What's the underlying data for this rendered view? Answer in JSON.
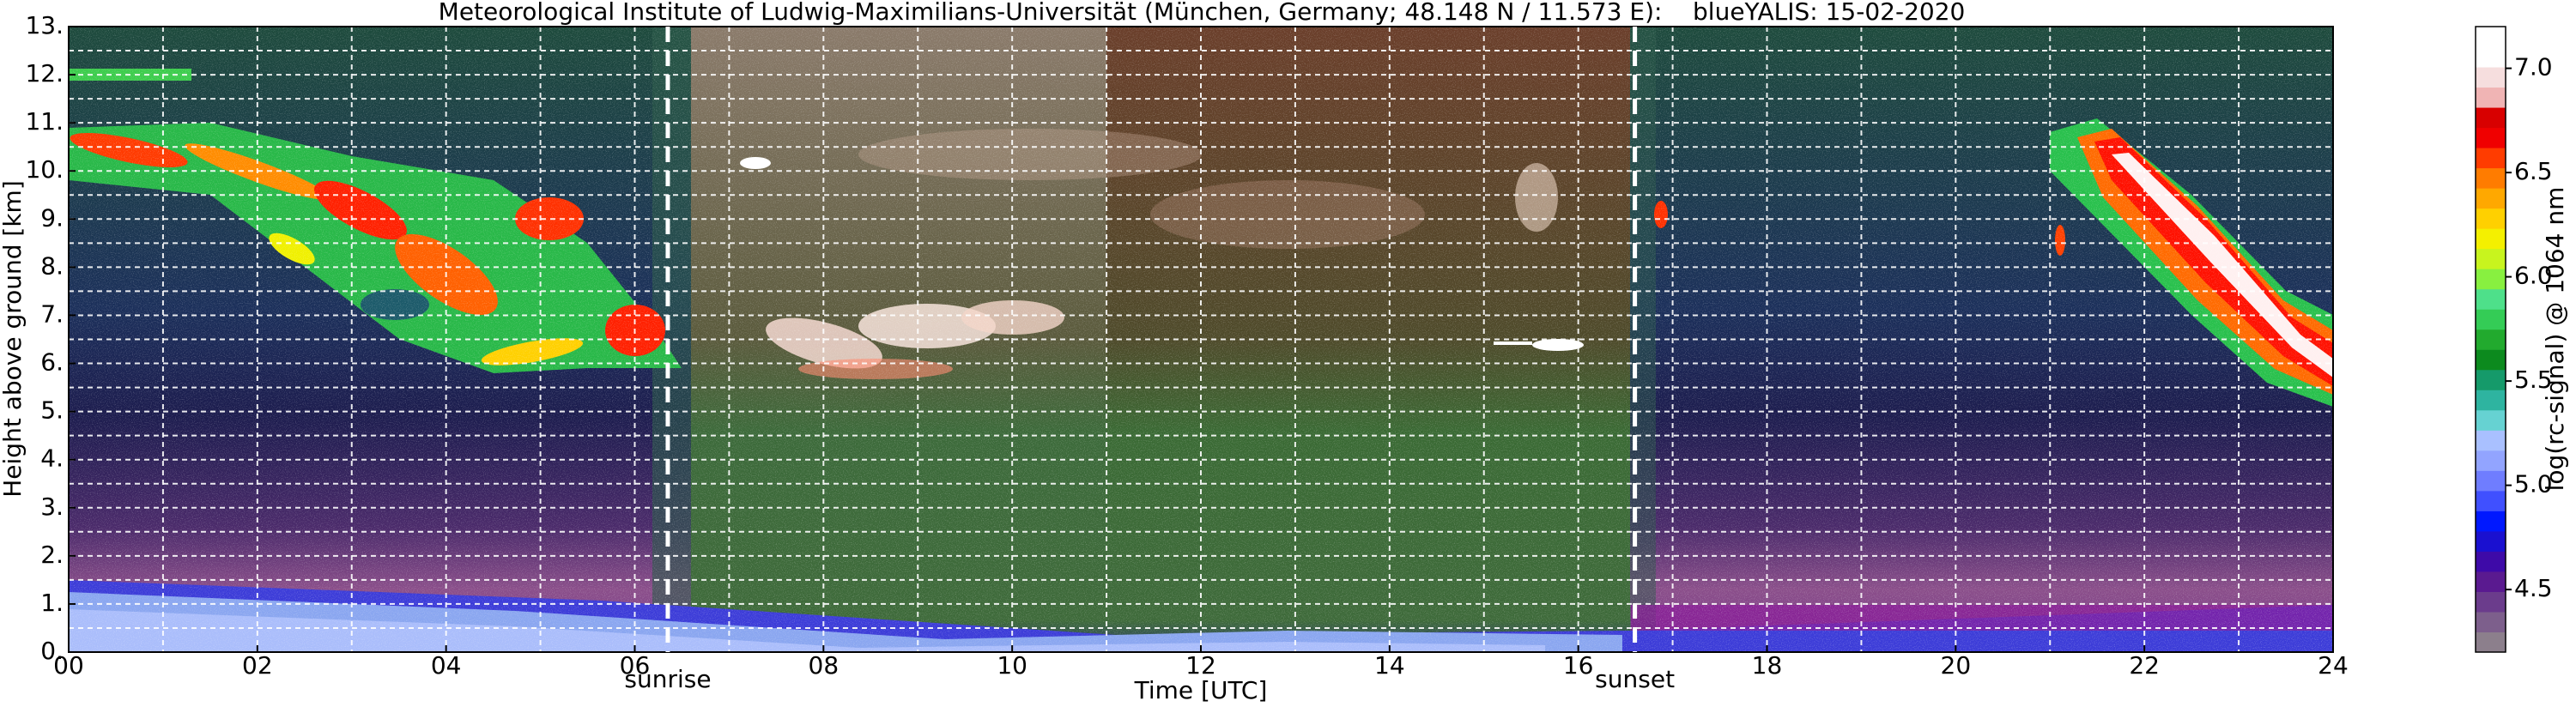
{
  "chart_data": {
    "type": "heatmap",
    "title": "Meteorological Institute of Ludwig-Maximilians-Universität (München, Germany; 48.148 N / 11.573 E):    blueYALIS: 15-02-2020",
    "xlabel": "Time [UTC]",
    "ylabel": "Height above ground [km]",
    "xlim": [
      0,
      24
    ],
    "xticks": [
      {
        "value": 0,
        "label": "00"
      },
      {
        "value": 2,
        "label": "02"
      },
      {
        "value": 4,
        "label": "04"
      },
      {
        "value": 6,
        "label": "06"
      },
      {
        "value": 8,
        "label": "08"
      },
      {
        "value": 10,
        "label": "10"
      },
      {
        "value": 12,
        "label": "12"
      },
      {
        "value": 14,
        "label": "14"
      },
      {
        "value": 16,
        "label": "16"
      },
      {
        "value": 18,
        "label": "18"
      },
      {
        "value": 20,
        "label": "20"
      },
      {
        "value": 22,
        "label": "22"
      },
      {
        "value": 24,
        "label": "24"
      }
    ],
    "xminor": [
      1,
      3,
      5,
      7,
      9,
      11,
      13,
      15,
      17,
      19,
      21,
      23
    ],
    "ylim": [
      0,
      13
    ],
    "yticks": [
      {
        "value": 0,
        "label": "0."
      },
      {
        "value": 1,
        "label": "1."
      },
      {
        "value": 2,
        "label": "2."
      },
      {
        "value": 3,
        "label": "3."
      },
      {
        "value": 4,
        "label": "4."
      },
      {
        "value": 5,
        "label": "5."
      },
      {
        "value": 6,
        "label": "6."
      },
      {
        "value": 7,
        "label": "7."
      },
      {
        "value": 8,
        "label": "8."
      },
      {
        "value": 9,
        "label": "9."
      },
      {
        "value": 10,
        "label": "10."
      },
      {
        "value": 11,
        "label": "11."
      },
      {
        "value": 12,
        "label": "12."
      },
      {
        "value": 13,
        "label": "13."
      }
    ],
    "yminor": [
      0.5,
      1.5,
      2.5,
      3.5,
      4.5,
      5.5,
      6.5,
      7.5,
      8.5,
      9.5,
      10.5,
      11.5,
      12.5
    ],
    "grid": true,
    "annotations": [
      {
        "label": "sunrise",
        "x": 6.35
      },
      {
        "label": "sunset",
        "x": 16.6
      }
    ],
    "colorbar": {
      "label": "log(rc-signal) @ 1064 nm",
      "lim": [
        4.2,
        7.2
      ],
      "ticks": [
        4.5,
        {
          "value": 5,
          "label": "5.0"
        },
        5.5,
        {
          "value": 6,
          "label": "6.0"
        },
        6.5,
        {
          "value": 7,
          "label": "7.0"
        }
      ],
      "colors": [
        "#8c7f8c",
        "#7d5f8c",
        "#6b3c8c",
        "#5a1a90",
        "#3e0aa8",
        "#1a10d0",
        "#0018ff",
        "#4050ff",
        "#6f7dff",
        "#92a4ff",
        "#a9c0ff",
        "#66d2d2",
        "#2eb4a0",
        "#159a6a",
        "#0c8a1e",
        "#22aa2e",
        "#34cc56",
        "#4ee08a",
        "#88f040",
        "#c8f41e",
        "#f4f000",
        "#ffd000",
        "#ffa800",
        "#ff7c00",
        "#ff3c00",
        "#f00000",
        "#d80000",
        "#f0b4b4",
        "#f6dede",
        "#ffffff",
        "#ffffff"
      ]
    }
  }
}
